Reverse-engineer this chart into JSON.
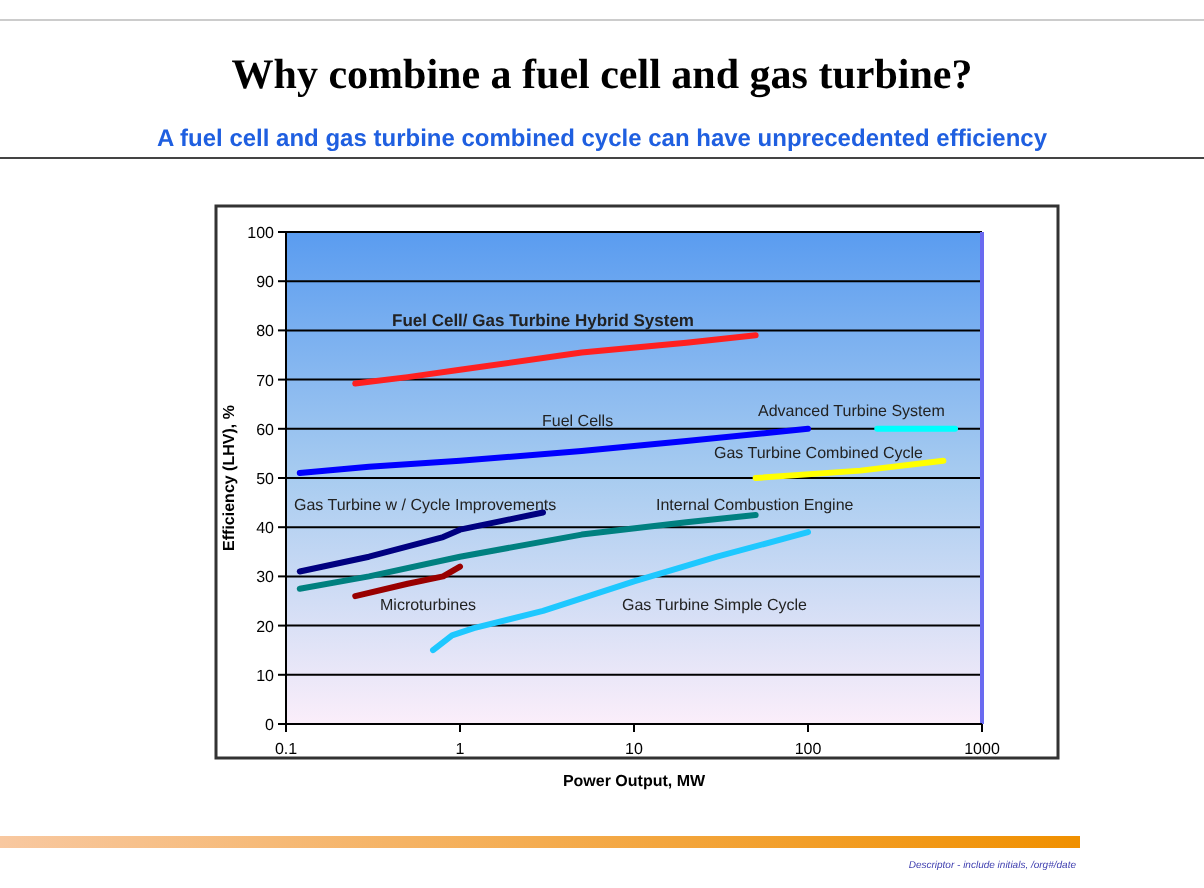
{
  "chart_data": {
    "type": "line",
    "title": "Why combine a fuel cell and gas turbine?",
    "subtitle": "A fuel cell and gas turbine combined cycle can have unprecedented efficiency",
    "xlabel": "Power Output, MW",
    "ylabel": "Efficiency (LHV), %",
    "log": "x",
    "xlim": [
      0.1,
      1000
    ],
    "xticks": [
      0.1,
      1,
      10,
      100,
      1000
    ],
    "ylim": [
      0,
      100
    ],
    "yticks": [
      0,
      10,
      20,
      30,
      40,
      50,
      60,
      70,
      80,
      90,
      100
    ],
    "grid": "y",
    "marker": "none",
    "annotations": [
      "Descriptor - include initials, /org#/date"
    ],
    "series": [
      {
        "name": "Fuel Cell/ Gas Turbine Hybrid System",
        "color": "#ff2020",
        "x": [
          0.25,
          0.5,
          1,
          5,
          20,
          50
        ],
        "values": [
          69.2,
          70.5,
          72,
          75.5,
          77.5,
          79
        ]
      },
      {
        "name": "Fuel Cells",
        "color": "#0000ff",
        "x": [
          0.12,
          0.3,
          1,
          5,
          20,
          100
        ],
        "values": [
          51,
          52.3,
          53.5,
          55.5,
          57.5,
          60
        ]
      },
      {
        "name": "Advanced Turbine System",
        "color": "#00ffff",
        "x": [
          250,
          700
        ],
        "values": [
          60,
          60
        ]
      },
      {
        "name": "Gas Turbine Combined Cycle",
        "color": "#ffff00",
        "x": [
          50,
          200,
          600
        ],
        "values": [
          50,
          51.5,
          53.5
        ]
      },
      {
        "name": "Internal Combustion Engine",
        "color": "#008080",
        "x": [
          0.12,
          0.3,
          1,
          5,
          20,
          50
        ],
        "values": [
          27.5,
          30,
          34,
          38.5,
          41,
          42.5
        ]
      },
      {
        "name": "Gas Turbine w / Cycle Improvements",
        "color": "#000080",
        "x": [
          0.12,
          0.3,
          0.8,
          1,
          3
        ],
        "values": [
          31,
          34,
          38,
          39.5,
          43
        ]
      },
      {
        "name": "Microturbines",
        "color": "#990000",
        "x": [
          0.25,
          0.5,
          0.8,
          1
        ],
        "values": [
          26,
          28.5,
          30,
          32
        ]
      },
      {
        "name": "Gas Turbine Simple Cycle",
        "color": "#1ec8ff",
        "x": [
          0.7,
          0.9,
          1.2,
          3,
          10,
          30,
          100
        ],
        "values": [
          15,
          18,
          19.5,
          23,
          29,
          34,
          39
        ]
      }
    ]
  }
}
